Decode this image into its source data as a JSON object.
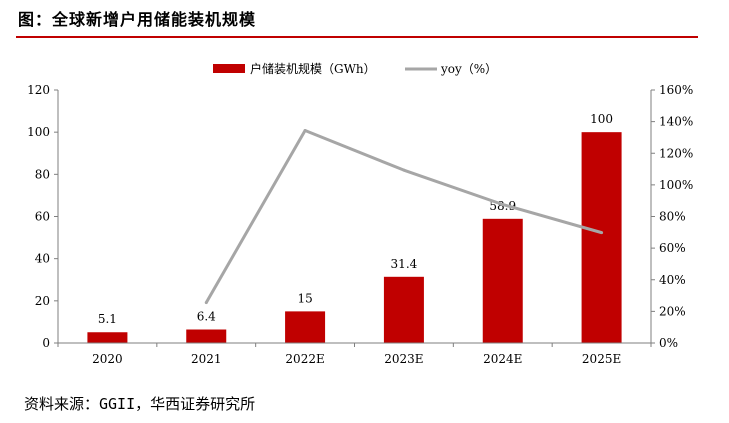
{
  "figure": {
    "title": "图：全球新增户用储能装机规模",
    "source": "资料来源：GGII，华西证券研究所"
  },
  "colors": {
    "bar": "#c00000",
    "line": "#a6a6a6",
    "rule": "#c00000",
    "axis": "#7f7f7f"
  },
  "chart_data": {
    "type": "bar",
    "categories": [
      "2020",
      "2021",
      "2022E",
      "2023E",
      "2024E",
      "2025E"
    ],
    "series": [
      {
        "name": "户储装机规模（GWh）",
        "type": "bar",
        "axis": "left",
        "values": [
          5.1,
          6.4,
          15,
          31.4,
          58.9,
          100
        ],
        "labels": [
          "5.1",
          "6.4",
          "15",
          "31.4",
          "58.9",
          "100"
        ]
      },
      {
        "name": "yoy（%）",
        "type": "line",
        "axis": "right",
        "values": [
          null,
          25.5,
          134.4,
          109.3,
          87.6,
          69.8
        ]
      }
    ],
    "y_left": {
      "min": 0,
      "max": 120,
      "ticks": [
        "0",
        "20",
        "40",
        "60",
        "80",
        "100",
        "120"
      ]
    },
    "y_right": {
      "min": 0,
      "max": 160,
      "ticks": [
        "0%",
        "20%",
        "40%",
        "60%",
        "80%",
        "100%",
        "120%",
        "140%",
        "160%"
      ]
    },
    "legend": "top-center",
    "grid": false
  }
}
